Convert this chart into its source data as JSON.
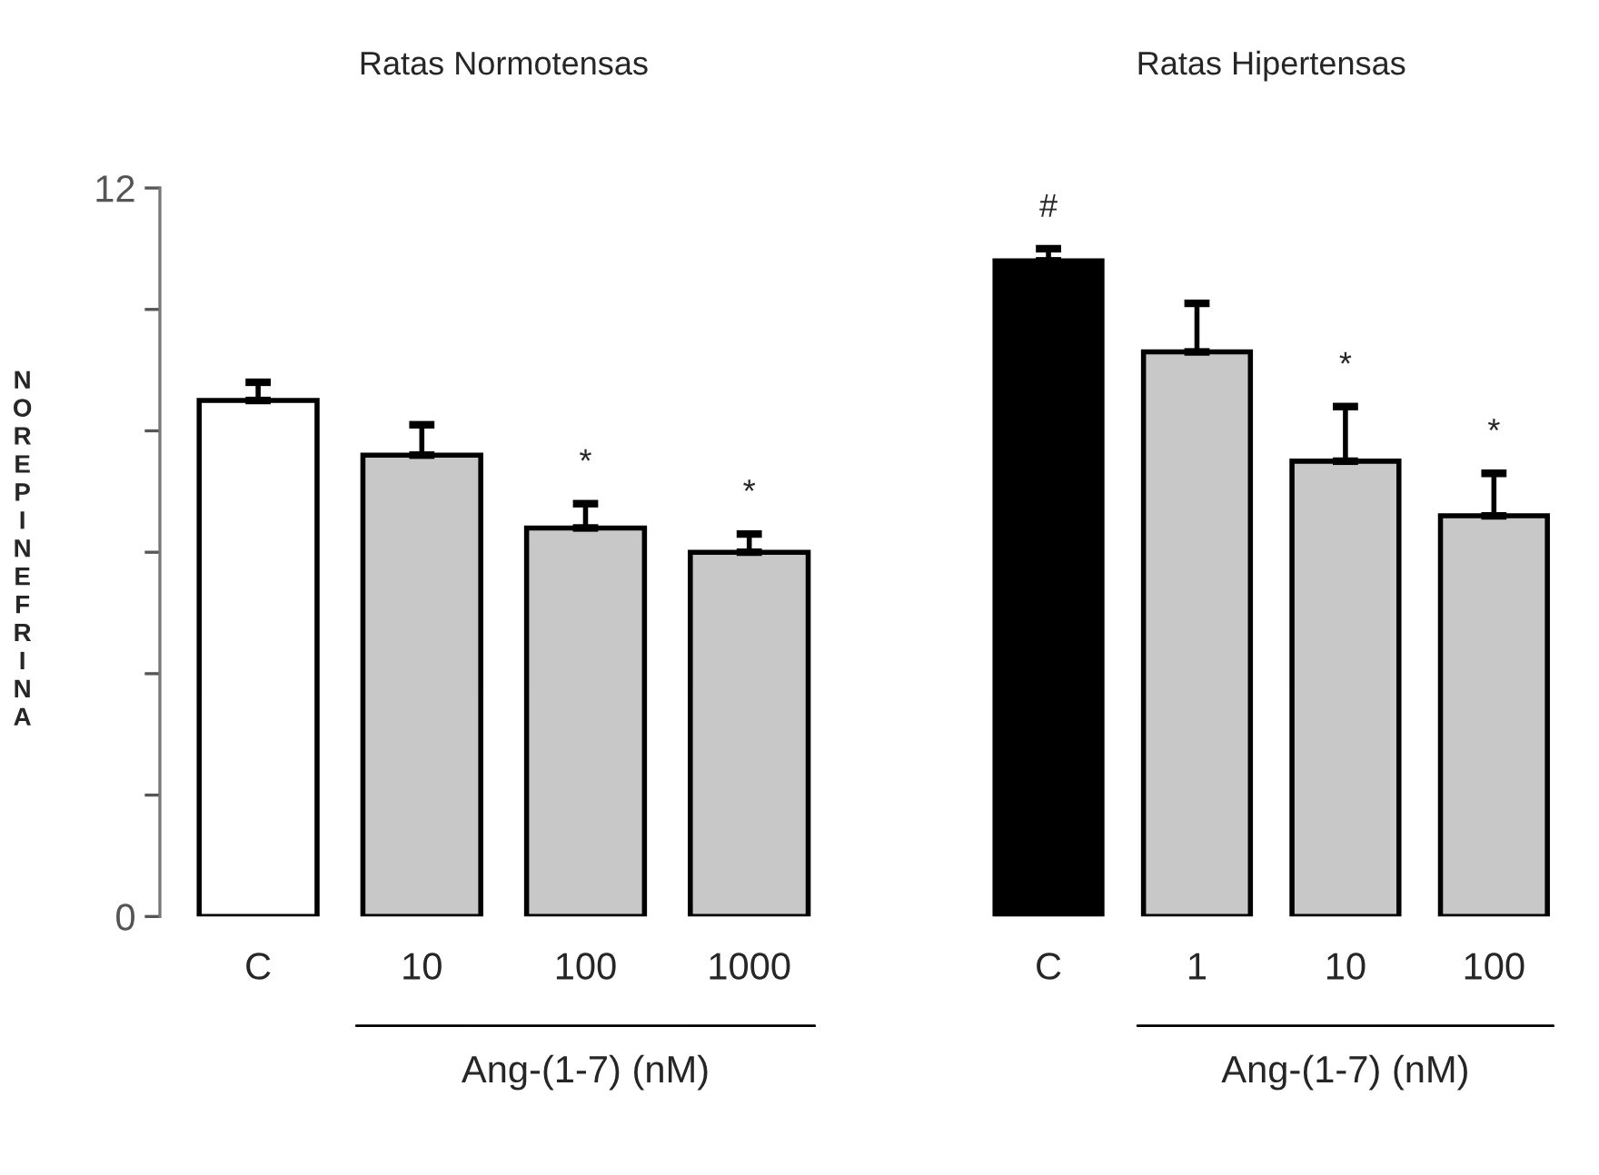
{
  "chart_data": [
    {
      "type": "bar",
      "title": "Ratas Normotensas",
      "ylabel": "NOREPINEFRINA",
      "xlabel": "Ang-(1-7) (nM)",
      "categories": [
        "C",
        "10",
        "100",
        "1000"
      ],
      "series": [
        {
          "colors": [
            "#ffffff",
            "#c8c8c8",
            "#c8c8c8",
            "#c8c8c8"
          ],
          "values": [
            8.5,
            7.6,
            6.4,
            6.0
          ],
          "errors": [
            [
              8.5,
              8.8
            ],
            [
              7.6,
              8.1
            ],
            [
              6.4,
              6.8
            ],
            [
              6.0,
              6.3
            ]
          ]
        }
      ],
      "ylim": [
        0,
        12
      ],
      "yticks": [
        0,
        {
          "value": 2,
          "label": null
        },
        {
          "value": 4,
          "label": null
        },
        {
          "value": 6,
          "label": null
        },
        {
          "value": 8,
          "label": null
        },
        {
          "value": 10,
          "label": null
        },
        12
      ],
      "annotations": [
        {
          "text": "*",
          "x": "100",
          "y": 6.8
        },
        {
          "text": "*",
          "x": "1000",
          "y": 6.3
        }
      ]
    },
    {
      "type": "bar",
      "title": "Ratas Hipertensas",
      "xlabel": "Ang-(1-7) (nM)",
      "categories": [
        "C",
        "1",
        "10",
        "100"
      ],
      "series": [
        {
          "colors": [
            "#000000",
            "#c8c8c8",
            "#c8c8c8",
            "#c8c8c8"
          ],
          "values": [
            10.8,
            9.3,
            7.5,
            6.6
          ],
          "errors": [
            [
              10.8,
              11.0
            ],
            [
              9.3,
              10.1
            ],
            [
              7.5,
              8.4
            ],
            [
              6.6,
              7.3
            ]
          ]
        }
      ],
      "ylim": [
        0,
        12
      ],
      "tick_labels": "x",
      "annotations": [
        {
          "text": "#",
          "x": "C",
          "y": 11.0
        },
        {
          "text": "*",
          "x": "10",
          "y": 8.4
        },
        {
          "text": "*",
          "x": "100",
          "y": 7.3
        }
      ]
    }
  ]
}
